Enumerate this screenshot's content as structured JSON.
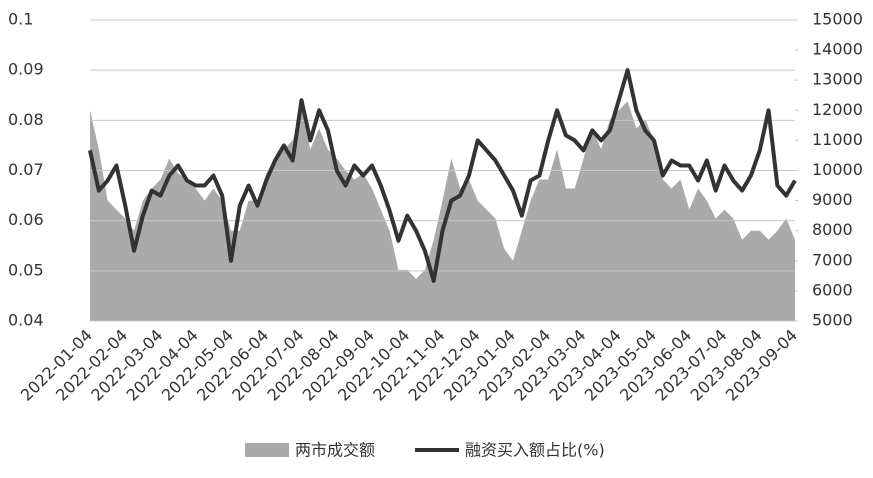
{
  "chart_data": {
    "type": "line-area",
    "categories": [
      "2022-01-04",
      null,
      null,
      null,
      "2022-02-04",
      null,
      null,
      null,
      "2022-03-04",
      null,
      null,
      null,
      "2022-04-04",
      null,
      null,
      null,
      "2022-05-04",
      null,
      null,
      null,
      "2022-06-04",
      null,
      null,
      null,
      "2022-07-04",
      null,
      null,
      null,
      "2022-08-04",
      null,
      null,
      null,
      "2022-09-04",
      null,
      null,
      null,
      "2022-10-04",
      null,
      null,
      null,
      "2022-11-04",
      null,
      null,
      null,
      "2022-12-04",
      null,
      null,
      null,
      "2023-01-04",
      null,
      null,
      null,
      "2023-02-04",
      null,
      null,
      null,
      "2023-03-04",
      null,
      null,
      null,
      "2023-04-04",
      null,
      null,
      null,
      "2023-05-04",
      null,
      null,
      null,
      "2023-06-04",
      null,
      null,
      null,
      "2023-07-04",
      null,
      null,
      null,
      "2023-08-04",
      null,
      null,
      null,
      "2023-09-04"
    ],
    "series": [
      {
        "name": "两市成交额",
        "color": "#aaaaaa",
        "axis": "y2",
        "kind": "area",
        "values": [
          12000,
          10700,
          9000,
          8700,
          8400,
          8000,
          9000,
          9400,
          9700,
          10400,
          9900,
          9700,
          9400,
          9000,
          9400,
          9000,
          8000,
          8000,
          9000,
          9000,
          9900,
          10400,
          10700,
          11000,
          12000,
          10700,
          11400,
          10700,
          10400,
          10000,
          9700,
          9900,
          9400,
          8700,
          8000,
          6700,
          6700,
          6400,
          6700,
          7700,
          9000,
          10400,
          9400,
          9700,
          9000,
          8700,
          8400,
          7400,
          7000,
          8000,
          9000,
          9700,
          9700,
          10700,
          9400,
          9400,
          10400,
          11400,
          10700,
          11700,
          12000,
          12300,
          11400,
          11700,
          11000,
          9700,
          9400,
          9700,
          8700,
          9400,
          9000,
          8400,
          8700,
          8400,
          7700,
          8000,
          8000,
          7700,
          8000,
          8400,
          7700
        ]
      },
      {
        "name": "融资买入额占比(%)",
        "color": "#333333",
        "kind": "line",
        "values": [
          0.074,
          0.066,
          0.068,
          0.071,
          0.063,
          0.054,
          0.061,
          0.066,
          0.065,
          0.069,
          0.071,
          0.068,
          0.067,
          0.067,
          0.069,
          0.065,
          0.052,
          0.063,
          0.067,
          0.063,
          0.068,
          0.072,
          0.075,
          0.072,
          0.084,
          0.076,
          0.082,
          0.078,
          0.07,
          0.067,
          0.071,
          0.069,
          0.071,
          0.067,
          0.062,
          0.056,
          0.061,
          0.058,
          0.054,
          0.048,
          0.058,
          0.064,
          0.065,
          0.069,
          0.076,
          0.074,
          0.072,
          0.069,
          0.066,
          0.061,
          0.068,
          0.069,
          0.076,
          0.082,
          0.077,
          0.076,
          0.074,
          0.078,
          0.076,
          0.078,
          0.084,
          0.09,
          0.082,
          0.078,
          0.076,
          0.069,
          0.072,
          0.071,
          0.071,
          0.068,
          0.072,
          0.066,
          0.071,
          0.068,
          0.066,
          0.069,
          0.074,
          0.082,
          0.067,
          0.065,
          0.068
        ]
      }
    ],
    "ylim": [
      0.04,
      0.1
    ],
    "yticks": [
      0.04,
      0.05,
      0.06,
      0.07,
      0.08,
      0.09,
      0.1
    ],
    "y2lim": [
      5000,
      15000
    ],
    "y2ticks": [
      5000,
      6000,
      7000,
      8000,
      9000,
      10000,
      11000,
      12000,
      13000,
      14000,
      15000
    ],
    "grid": true,
    "legend": "bottom"
  }
}
